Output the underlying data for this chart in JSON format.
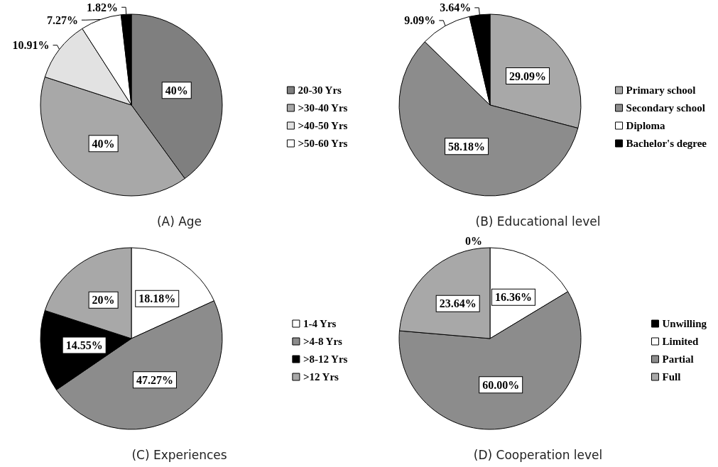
{
  "chart_data": [
    {
      "type": "pie",
      "title": "(A) Age",
      "categories": [
        "20-30 Yrs",
        ">30-40 Yrs",
        ">40-50 Yrs",
        ">50-60 Yrs",
        null
      ],
      "values": [
        40,
        40,
        10.91,
        7.27,
        1.82
      ],
      "value_labels": [
        "40%",
        "40%",
        "10.91%",
        "7.27%",
        "1.82%"
      ],
      "colors": [
        "#7f7f7f",
        "#a8a8a8",
        "#e2e2e2",
        "#ffffff",
        "#000000"
      ],
      "legend": "right"
    },
    {
      "type": "pie",
      "title": "(B) Educational level",
      "categories": [
        "Primary school",
        "Secondary school",
        "Diploma",
        "Bachelor's degree"
      ],
      "values": [
        29.09,
        58.18,
        9.09,
        3.64
      ],
      "value_labels": [
        "29.09%",
        "58.18%",
        "9.09%",
        "3.64%"
      ],
      "colors": [
        "#a8a8a8",
        "#8c8c8c",
        "#ffffff",
        "#000000"
      ],
      "legend": "right"
    },
    {
      "type": "pie",
      "title": "(C) Experiences",
      "categories": [
        "1-4 Yrs",
        ">4-8 Yrs",
        ">8-12 Yrs",
        ">12 Yrs"
      ],
      "values": [
        18.18,
        47.27,
        14.55,
        20
      ],
      "value_labels": [
        "18.18%",
        "47.27%",
        "14.55%",
        "20%"
      ],
      "colors": [
        "#ffffff",
        "#8c8c8c",
        "#000000",
        "#a8a8a8"
      ],
      "legend": "right"
    },
    {
      "type": "pie",
      "title": "(D) Cooperation level",
      "categories": [
        "Unwilling",
        "Limited",
        "Partial",
        "Full"
      ],
      "values": [
        0,
        16.36,
        60,
        23.64
      ],
      "value_labels": [
        "0%",
        "16.36%",
        "60.00%",
        "23.64%"
      ],
      "colors": [
        "#000000",
        "#ffffff",
        "#8c8c8c",
        "#a8a8a8"
      ],
      "legend": "right"
    }
  ]
}
